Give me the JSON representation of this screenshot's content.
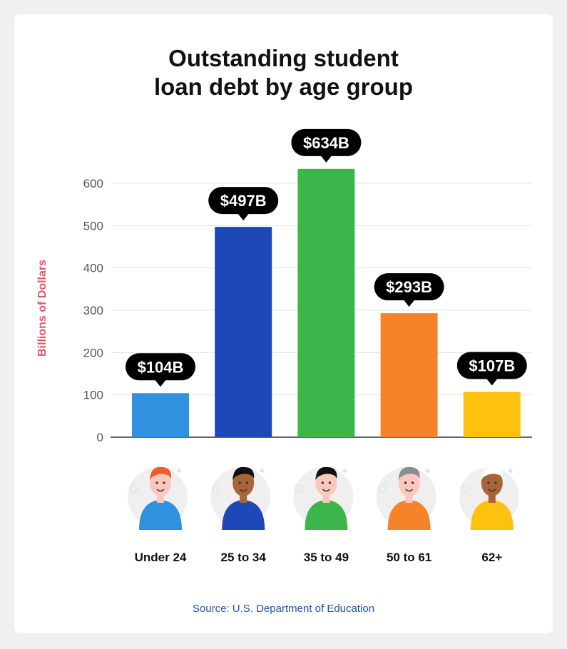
{
  "chart_data": {
    "type": "bar",
    "title_lines": [
      "Outstanding student",
      "loan debt by age group"
    ],
    "ylabel": "Billions of Dollars",
    "xlabel": "",
    "ylim": [
      0,
      600
    ],
    "yticks": [
      0,
      100,
      200,
      300,
      400,
      500,
      600
    ],
    "grid": true,
    "categories": [
      "Under 24",
      "25 to 34",
      "35 to 49",
      "50 to 61",
      "62+"
    ],
    "values": [
      104,
      497,
      634,
      293,
      107
    ],
    "data_labels": [
      "$104B",
      "$497B",
      "$634B",
      "$293B",
      "$107B"
    ],
    "colors": [
      "#3191e0",
      "#1e47b7",
      "#3cb54a",
      "#f5832a",
      "#fdc20f"
    ],
    "icons": [
      "person-young-red-hair-icon",
      "person-woman-curly-hair-icon",
      "person-bearded-man-icon",
      "person-older-woman-icon",
      "person-senior-man-icon"
    ]
  },
  "source": "Source: U.S. Department of Education",
  "style": {
    "ylabel_color": "#e0566b",
    "source_color": "#1f56b0",
    "bubble_color": "#000000",
    "grid_color": "#e4e4e4"
  }
}
